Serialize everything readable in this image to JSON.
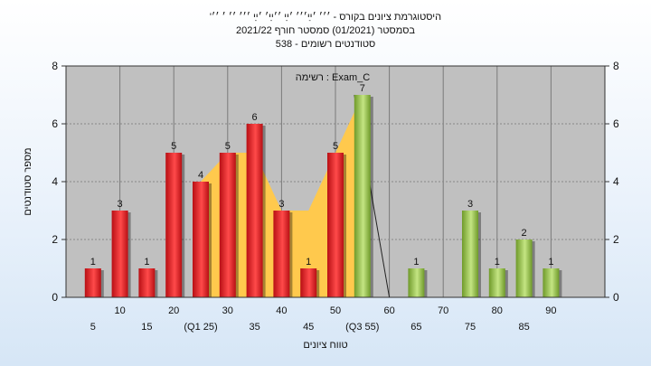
{
  "chart_data": {
    "type": "bar",
    "title_lines": [
      "'היסטוגרמת ציונים בקורס - ׳׳׳ ׳ײַ׳׳׳ ׳ײַ ׳׳ײַ׳ ׳ײַ ׳׳׳ ׳׳ ׳ ׳׳",
      "בסמסטר  (01/2021)  סמסטר חורף  2021/22",
      "סטודנטים רשומים - 538"
    ],
    "annotation": "רשימה : Exam_C",
    "xlabel": "טווח ציונים",
    "ylabel": "מספר סטודנטים",
    "ylim": [
      0,
      8
    ],
    "yticks": [
      0,
      2,
      4,
      6,
      8
    ],
    "xlim": [
      0,
      100
    ],
    "xtick_labels": [
      {
        "x": 5,
        "label": "5",
        "row": 2
      },
      {
        "x": 10,
        "label": "10",
        "row": 1
      },
      {
        "x": 15,
        "label": "15",
        "row": 2
      },
      {
        "x": 20,
        "label": "20",
        "row": 1
      },
      {
        "x": 25,
        "label": "(Q1 25)",
        "row": 2
      },
      {
        "x": 30,
        "label": "30",
        "row": 1
      },
      {
        "x": 35,
        "label": "35",
        "row": 2
      },
      {
        "x": 40,
        "label": "40",
        "row": 1
      },
      {
        "x": 45,
        "label": "45",
        "row": 2
      },
      {
        "x": 50,
        "label": "50",
        "row": 1
      },
      {
        "x": 55,
        "label": "(Q3 55)",
        "row": 2
      },
      {
        "x": 60,
        "label": "60",
        "row": 1
      },
      {
        "x": 65,
        "label": "65",
        "row": 2
      },
      {
        "x": 70,
        "label": "70",
        "row": 1
      },
      {
        "x": 75,
        "label": "75",
        "row": 2
      },
      {
        "x": 80,
        "label": "80",
        "row": 1
      },
      {
        "x": 85,
        "label": "85",
        "row": 2
      },
      {
        "x": 90,
        "label": "90",
        "row": 1
      }
    ],
    "bars": [
      {
        "x": 5,
        "value": 1,
        "color": "red"
      },
      {
        "x": 10,
        "value": 3,
        "color": "red"
      },
      {
        "x": 15,
        "value": 1,
        "color": "red"
      },
      {
        "x": 20,
        "value": 5,
        "color": "red"
      },
      {
        "x": 25,
        "value": 4,
        "color": "red"
      },
      {
        "x": 30,
        "value": 5,
        "color": "red"
      },
      {
        "x": 35,
        "value": 6,
        "color": "red"
      },
      {
        "x": 40,
        "value": 3,
        "color": "red"
      },
      {
        "x": 45,
        "value": 1,
        "color": "red"
      },
      {
        "x": 50,
        "value": 5,
        "color": "red"
      },
      {
        "x": 55,
        "value": 7,
        "color": "green"
      },
      {
        "x": 65,
        "value": 1,
        "color": "green"
      },
      {
        "x": 75,
        "value": 3,
        "color": "green"
      },
      {
        "x": 80,
        "value": 1,
        "color": "green"
      },
      {
        "x": 85,
        "value": 2,
        "color": "green"
      },
      {
        "x": 90,
        "value": 1,
        "color": "green"
      }
    ],
    "band": {
      "points": [
        [
          25,
          0
        ],
        [
          25,
          4
        ],
        [
          30,
          5
        ],
        [
          35,
          5
        ],
        [
          40,
          3
        ],
        [
          45,
          3
        ],
        [
          50,
          5
        ],
        [
          55,
          7
        ],
        [
          55,
          0
        ]
      ],
      "color": "#ffc94d"
    },
    "colors": {
      "plot_bg": "#c0c0c0",
      "red_dark": "#b80f14",
      "red_light": "#ff4a4a",
      "green_dark": "#6f9a2a",
      "green_light": "#c4e583"
    }
  }
}
